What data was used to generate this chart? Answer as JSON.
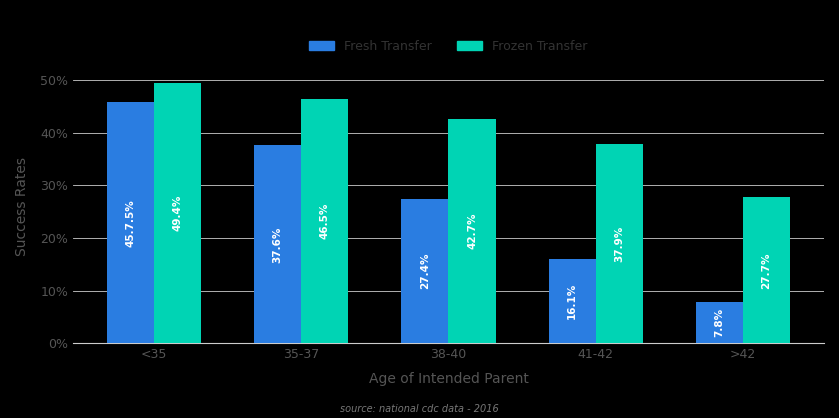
{
  "categories": [
    "<35",
    "35-37",
    "38-40",
    "41-42",
    ">42"
  ],
  "fresh_values": [
    45.75,
    37.6,
    27.4,
    16.1,
    7.8
  ],
  "frozen_values": [
    49.4,
    46.5,
    42.7,
    37.9,
    27.7
  ],
  "fresh_labels": [
    "45.7.5%",
    "37.6%",
    "27.4%",
    "16.1%",
    "7.8%"
  ],
  "frozen_labels": [
    "49.4%",
    "46.5%",
    "42.7%",
    "37.9%",
    "27.7%"
  ],
  "fresh_color": "#2a7de1",
  "frozen_color": "#00d4b4",
  "background_color": "#000000",
  "plot_bg_color": "#000000",
  "xlabel": "Age of Intended Parent",
  "ylabel": "Success Rates",
  "source": "source: national cdc data - 2016",
  "legend_fresh": "Fresh Transfer",
  "legend_frozen": "Frozen Transfer",
  "yticks": [
    0,
    10,
    20,
    30,
    40,
    50
  ],
  "bar_width": 0.32,
  "tick_label_color": "#555555",
  "axis_label_color": "#555555",
  "grid_color": "#cccccc",
  "source_color": "#777777",
  "legend_text_color": "#333333"
}
